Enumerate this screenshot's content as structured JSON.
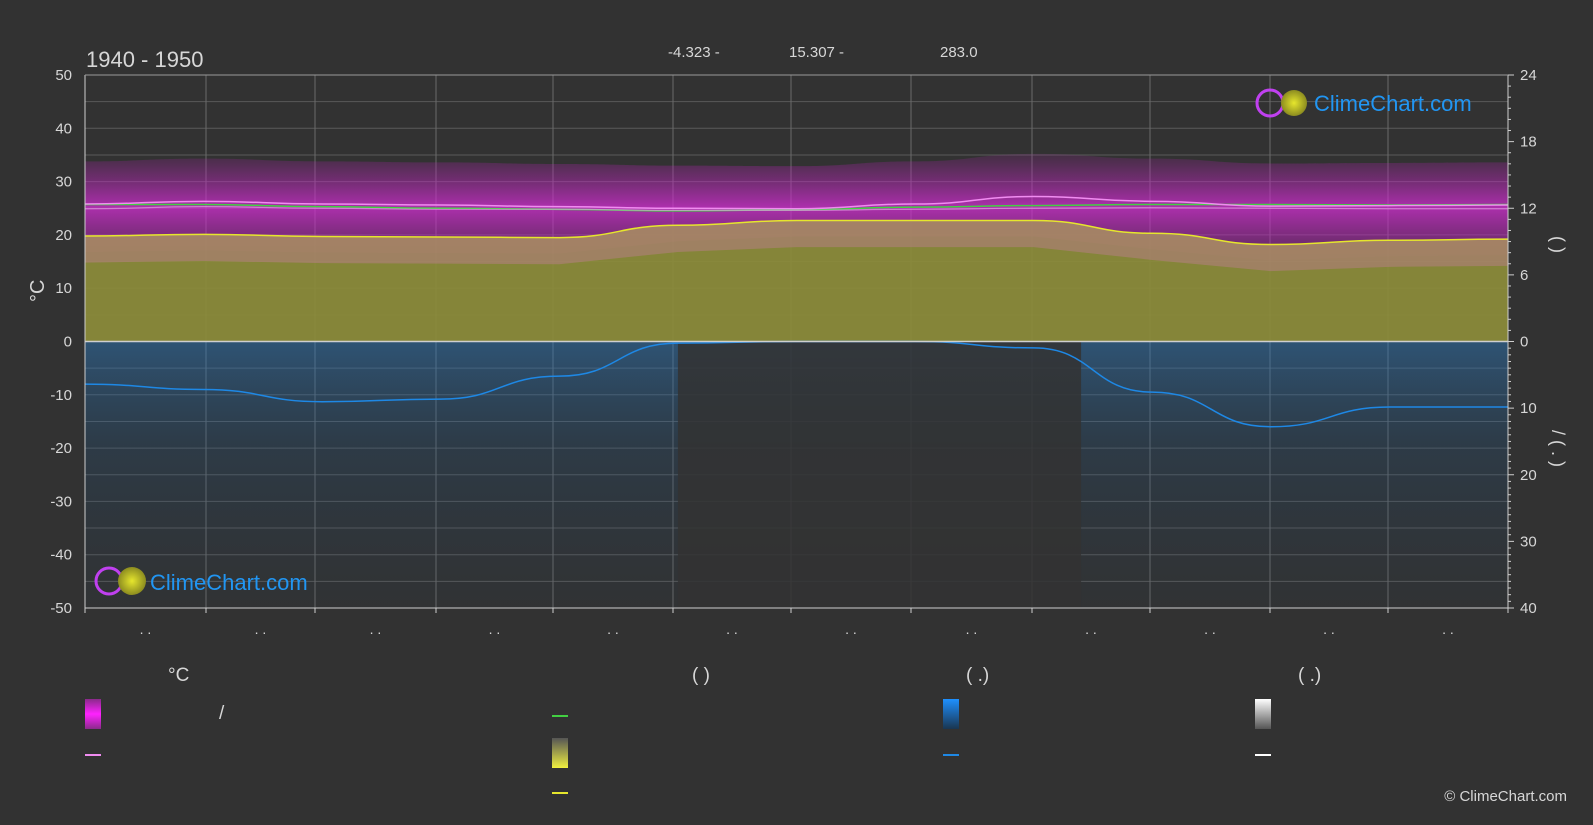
{
  "chart_data": {
    "type": "area",
    "title": "1940 - 1950",
    "header_values": [
      "-4.323 -",
      "15.307 -",
      "283.0"
    ],
    "ylabel_left": "°C",
    "ylim_left": [
      -50,
      50
    ],
    "yticks_left": [
      50,
      40,
      30,
      20,
      10,
      0,
      -10,
      -20,
      -30,
      -40,
      -50
    ],
    "yticks_right_top": [
      24,
      18,
      12,
      6,
      0
    ],
    "yticks_right_bottom": [
      0,
      10,
      20,
      30,
      40
    ],
    "ylabel_right_top": "(   )",
    "ylabel_right_bottom": "/   (  .  )",
    "xtick_labels": [
      ". .",
      ". .",
      ". .",
      ". .",
      ". .",
      ". .",
      ". .",
      ". .",
      ". .",
      ". .",
      ". .",
      ". ."
    ],
    "month_positions": [
      0,
      1,
      2,
      3,
      4,
      5,
      6,
      7,
      8,
      9,
      10,
      11,
      12
    ],
    "series": [
      {
        "key": "sunshine_band",
        "values": [
          25.7,
          25.7,
          25.3,
          25.0,
          24.8,
          24.5,
          24.7,
          25.2,
          25.5,
          25.7,
          25.7,
          25.6,
          25.7
        ]
      },
      {
        "key": "max_temp",
        "values": [
          25.8,
          26.3,
          25.8,
          25.6,
          25.3,
          25.0,
          24.9,
          25.8,
          27.2,
          26.3,
          25.4,
          25.5,
          25.6
        ]
      },
      {
        "key": "mean_temp",
        "values": [
          24.9,
          25.3,
          25.0,
          24.8,
          24.8,
          24.6,
          24.6,
          24.8,
          25.0,
          25.1,
          25.0,
          24.9,
          24.9
        ]
      },
      {
        "key": "sunshine_hours",
        "values": [
          19.8,
          20.1,
          19.7,
          19.6,
          19.5,
          21.8,
          22.7,
          22.7,
          22.7,
          20.3,
          18.2,
          19.0,
          19.2
        ]
      },
      {
        "key": "precipitation",
        "values": [
          -8.0,
          -9.0,
          -11.3,
          -10.8,
          -6.5,
          -0.3,
          0.0,
          0.0,
          -1.2,
          -9.5,
          -16.0,
          -12.3,
          -12.3
        ]
      }
    ]
  },
  "legend": {
    "col1_title": "°C",
    "col1_text": "/",
    "col3_title": "(     .)",
    "col4_title": "(    .)",
    "col2_title": "(          )"
  },
  "logo": {
    "text": "ClimeChart.com"
  },
  "copyright": "© ClimeChart.com",
  "colors": {
    "background": "#323232",
    "magenta": "#e22fe2",
    "olive": "#8c8c3a",
    "yellow": "#e6e62d",
    "blue": "#1e88e5",
    "green": "#42d042",
    "pink_line": "#f08cf0"
  }
}
